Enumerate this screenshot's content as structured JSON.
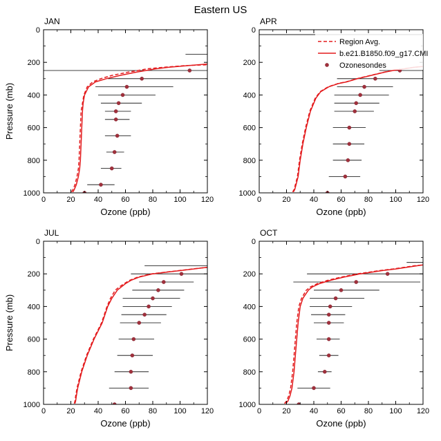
{
  "figure": {
    "title": "Eastern US"
  },
  "legend": {
    "items": [
      {
        "label": "Region Avg.",
        "style": "dashed"
      },
      {
        "label": "b.e21.B1850.f09_g17.CMI",
        "style": "solid"
      },
      {
        "label": "Ozonesondes",
        "style": "marker"
      }
    ]
  },
  "colors": {
    "model": "#e31a1c",
    "marker": "#a0303c",
    "axis": "#000000",
    "errorbar": "#000000"
  },
  "chart_data": [
    {
      "type": "line",
      "panel": "JAN",
      "xlabel": "Ozone (ppb)",
      "ylabel": "Pressure (mb)",
      "xlim": [
        0,
        120
      ],
      "ylim": [
        0,
        1000
      ],
      "y_inverted": true,
      "xticks": [
        0,
        20,
        40,
        60,
        80,
        100,
        120
      ],
      "yticks": [
        0,
        200,
        400,
        600,
        800,
        1000
      ],
      "series": [
        {
          "name": "b.e21.B1850.f09_g17.CMI",
          "style": "solid",
          "p": [
            995,
            980,
            950,
            900,
            850,
            800,
            700,
            600,
            500,
            450,
            400,
            350,
            320,
            300,
            280,
            260,
            240,
            230,
            220,
            210
          ],
          "x": [
            21.5,
            22.5,
            24,
            25.5,
            26.5,
            27,
            27.5,
            28,
            28.5,
            29,
            30,
            33,
            38,
            46,
            56,
            68,
            82,
            92,
            106,
            120
          ]
        },
        {
          "name": "Region Avg.",
          "style": "dashed",
          "p": [
            995,
            980,
            950,
            900,
            850,
            800,
            700,
            600,
            500,
            450,
            400,
            350,
            320,
            300,
            280,
            260,
            240,
            230,
            220,
            215
          ],
          "x": [
            20.5,
            21.5,
            23,
            24.5,
            25.5,
            26,
            26.5,
            27,
            27.5,
            28.5,
            29.5,
            32,
            36,
            42,
            50,
            62,
            76,
            88,
            104,
            120
          ]
        }
      ],
      "sondes": {
        "p": [
          150,
          250,
          300,
          350,
          400,
          450,
          500,
          550,
          650,
          750,
          850,
          950,
          1000
        ],
        "mean": [
          null,
          107,
          72,
          61,
          58,
          55,
          53,
          53,
          54,
          52,
          50,
          42,
          30
        ],
        "lo": [
          104,
          0,
          47,
          38,
          40,
          42,
          45,
          45,
          45,
          46,
          42,
          32,
          14
        ],
        "hi": [
          120,
          120,
          120,
          95,
          82,
          72,
          64,
          63,
          64,
          59,
          57,
          52,
          42
        ]
      }
    },
    {
      "type": "line",
      "panel": "APR",
      "xlabel": "Ozone (ppb)",
      "ylabel": "",
      "xlim": [
        0,
        120
      ],
      "ylim": [
        0,
        1000
      ],
      "y_inverted": true,
      "xticks": [
        0,
        20,
        40,
        60,
        80,
        100,
        120
      ],
      "yticks": [
        0,
        200,
        400,
        600,
        800,
        1000
      ],
      "series": [
        {
          "name": "b.e21.B1850.f09_g17.CMI",
          "style": "solid",
          "p": [
            995,
            980,
            950,
            900,
            800,
            700,
            600,
            500,
            450,
            420,
            380,
            350,
            330,
            320,
            300,
            280,
            260,
            250,
            240,
            230,
            225
          ],
          "x": [
            25,
            26,
            27,
            28.5,
            30,
            32,
            34.5,
            37.5,
            40,
            41.5,
            45,
            51,
            58,
            64,
            72,
            82,
            92,
            98,
            106,
            114,
            120
          ]
        },
        {
          "name": "Region Avg.",
          "style": "dashed",
          "p": [
            995,
            980,
            950,
            900,
            800,
            700,
            600,
            500,
            450,
            420,
            380,
            350,
            330,
            320,
            300,
            280,
            260,
            250,
            240,
            230,
            225
          ],
          "x": [
            24.5,
            25.5,
            26.5,
            28,
            29.5,
            31.5,
            34,
            37,
            39.5,
            41,
            44.5,
            50.5,
            57.5,
            63.5,
            71.5,
            81.5,
            91.5,
            97.5,
            105.5,
            113.5,
            120
          ]
        }
      ],
      "sondes": {
        "p": [
          30,
          250,
          300,
          350,
          400,
          450,
          500,
          600,
          700,
          800,
          900,
          1000
        ],
        "mean": [
          null,
          103,
          85,
          77,
          74,
          71,
          70,
          66,
          66,
          65,
          63,
          50
        ],
        "lo": [
          0,
          88,
          57,
          57,
          55,
          55,
          55,
          54,
          54,
          54,
          51,
          37
        ],
        "hi": [
          120,
          120,
          120,
          98,
          95,
          88,
          84,
          78,
          77,
          75,
          74,
          63
        ]
      }
    },
    {
      "type": "line",
      "panel": "JUL",
      "xlabel": "Ozone (ppb)",
      "ylabel": "Pressure (mb)",
      "xlim": [
        0,
        120
      ],
      "ylim": [
        0,
        1000
      ],
      "y_inverted": true,
      "xticks": [
        0,
        20,
        40,
        60,
        80,
        100,
        120
      ],
      "yticks": [
        0,
        200,
        400,
        600,
        800,
        1000
      ],
      "series": [
        {
          "name": "b.e21.B1850.f09_g17.CMI",
          "style": "solid",
          "p": [
            995,
            980,
            950,
            900,
            800,
            700,
            600,
            500,
            400,
            350,
            300,
            280,
            260,
            240,
            220,
            200,
            190,
            180,
            170,
            165,
            160
          ],
          "x": [
            23,
            23.5,
            24,
            25,
            28,
            32,
            37,
            43,
            47,
            50,
            54,
            57,
            60,
            64,
            70,
            80,
            90,
            100,
            110,
            115,
            120
          ]
        },
        {
          "name": "Region Avg.",
          "style": "dashed",
          "p": [
            995,
            980,
            950,
            900,
            800,
            700,
            600,
            500,
            400,
            350,
            300,
            280,
            260,
            240,
            220,
            200,
            190,
            180,
            170,
            165,
            160
          ],
          "x": [
            22.5,
            23,
            23.5,
            24.5,
            27.5,
            31.5,
            36.5,
            42.5,
            46.5,
            49,
            52.5,
            55.5,
            59,
            63,
            69,
            79,
            89,
            99,
            109,
            114.5,
            120
          ]
        }
      ],
      "sondes": {
        "p": [
          150,
          200,
          250,
          300,
          350,
          400,
          450,
          500,
          600,
          700,
          800,
          900,
          1000
        ],
        "mean": [
          null,
          101,
          88,
          84,
          80,
          77,
          74,
          70,
          66,
          65,
          64,
          64,
          52
        ],
        "lo": [
          74,
          64,
          70,
          65,
          58,
          58,
          57,
          56,
          55,
          54,
          52,
          48,
          35
        ],
        "hi": [
          120,
          120,
          110,
          103,
          100,
          94,
          90,
          86,
          81,
          80,
          77,
          77,
          68
        ]
      }
    },
    {
      "type": "line",
      "panel": "OCT",
      "xlabel": "Ozone (ppb)",
      "ylabel": "",
      "xlim": [
        0,
        120
      ],
      "ylim": [
        0,
        1000
      ],
      "y_inverted": true,
      "xticks": [
        0,
        20,
        40,
        60,
        80,
        100,
        120
      ],
      "yticks": [
        0,
        200,
        400,
        600,
        800,
        1000
      ],
      "series": [
        {
          "name": "b.e21.B1850.f09_g17.CMI",
          "style": "solid",
          "p": [
            995,
            980,
            950,
            900,
            800,
            700,
            600,
            500,
            400,
            350,
            300,
            280,
            260,
            240,
            220,
            200,
            180,
            170,
            160,
            150,
            145
          ],
          "x": [
            19.5,
            21,
            22.5,
            24,
            25.5,
            26.5,
            27.5,
            28.5,
            30,
            32,
            36,
            39,
            44,
            52,
            62,
            74,
            90,
            100,
            108,
            116,
            120
          ]
        },
        {
          "name": "Region Avg.",
          "style": "dashed",
          "p": [
            995,
            980,
            950,
            900,
            800,
            700,
            600,
            500,
            400,
            350,
            300,
            280,
            260,
            240,
            220,
            200,
            180,
            170,
            160,
            150,
            145
          ],
          "x": [
            18.5,
            20,
            21.5,
            23,
            24.5,
            25.5,
            26.5,
            27.5,
            29,
            31,
            34.5,
            37.5,
            42.5,
            50,
            60,
            72,
            88,
            98,
            106,
            114,
            120
          ]
        }
      ],
      "sondes": {
        "p": [
          130,
          200,
          250,
          300,
          350,
          400,
          450,
          500,
          600,
          700,
          800,
          900,
          1000
        ],
        "mean": [
          null,
          94,
          71,
          60,
          56,
          52,
          51,
          51,
          51,
          51,
          48,
          40,
          29
        ],
        "lo": [
          108,
          35,
          25,
          40,
          37,
          37,
          38,
          40,
          42,
          44,
          43,
          28,
          16
        ],
        "hi": [
          120,
          120,
          118,
          88,
          77,
          68,
          63,
          62,
          59,
          58,
          53,
          52,
          42
        ]
      }
    }
  ]
}
